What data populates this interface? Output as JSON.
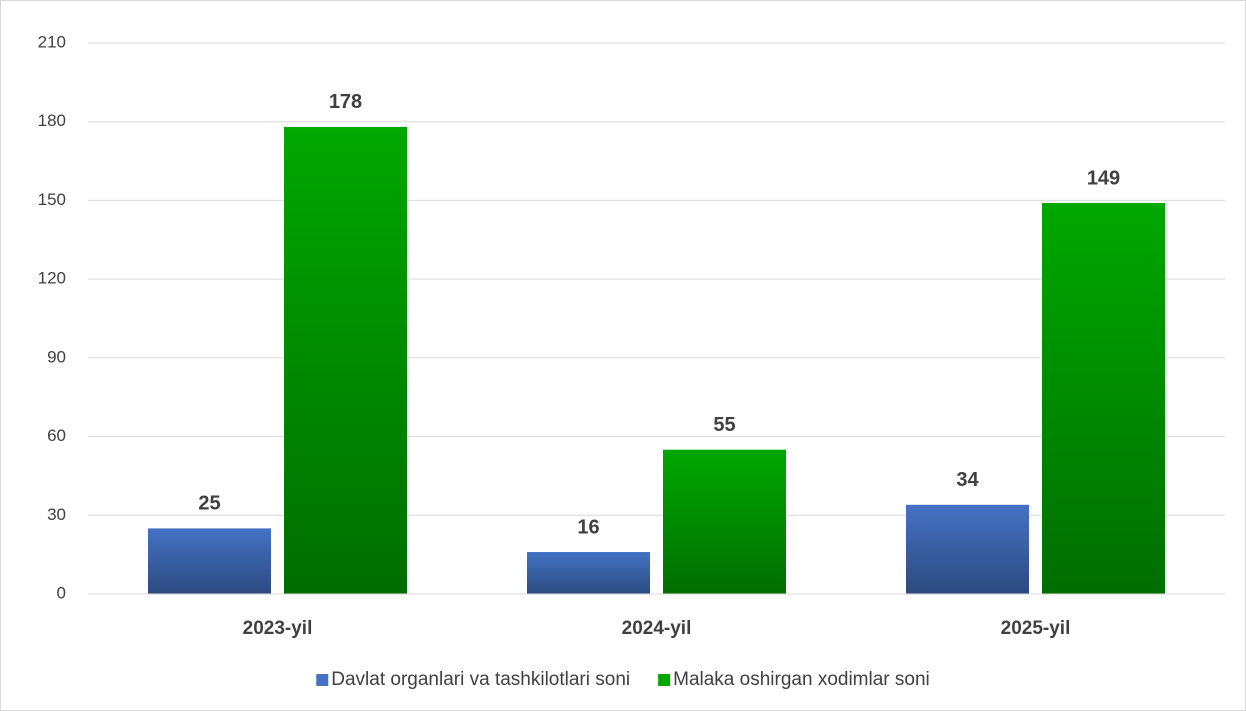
{
  "chart_data": {
    "type": "bar",
    "categories": [
      "2023-yil",
      "2024-yil",
      "2025-yil"
    ],
    "series": [
      {
        "name": "Davlat organlari va tashkilotlari soni",
        "color": "#4472c4",
        "values": [
          25,
          16,
          34
        ]
      },
      {
        "name": "Malaka oshirgan xodimlar soni",
        "color": "#00a800",
        "values": [
          178,
          55,
          149
        ]
      }
    ],
    "ylim": [
      0,
      210
    ],
    "yticks": [
      0,
      30,
      60,
      90,
      120,
      150,
      180,
      210
    ],
    "grid": true,
    "legend": "bottom"
  }
}
